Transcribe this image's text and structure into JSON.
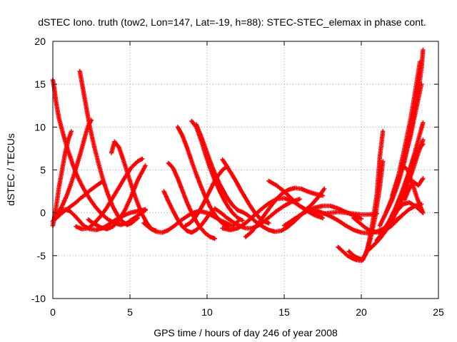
{
  "chart_data": {
    "type": "scatter",
    "title": "dSTEC Iono. truth (tow2, Lon=147, Lat=-19, h=88): STEC-STEC_elemax in phase cont.",
    "xlabel": "GPS time / hours of day 246 of year 2008",
    "ylabel": "dSTEC  / TECUs",
    "xlim": [
      0,
      25
    ],
    "ylim": [
      -10,
      20
    ],
    "xticks": [
      "0",
      "5",
      "10",
      "15",
      "20",
      "25"
    ],
    "yticks": [
      "-10",
      "-5",
      "0",
      "5",
      "10",
      "15",
      "20"
    ],
    "xtick_values": [
      0,
      5,
      10,
      15,
      20,
      25
    ],
    "ytick_values": [
      -10,
      -5,
      0,
      5,
      10,
      15,
      20
    ],
    "grid": true,
    "legend": "none",
    "marker": "plus",
    "color": "#ff0000",
    "series": [
      {
        "x": [
          0.0,
          0.05,
          0.1,
          0.2,
          0.4,
          0.7,
          1.0,
          1.3,
          1.6,
          2.0,
          2.4,
          2.8,
          3.2,
          3.6,
          4.0,
          4.4,
          4.8,
          5.2,
          5.6,
          6.0
        ],
        "y": [
          15.5,
          15.0,
          14.5,
          13.0,
          11.0,
          9.0,
          7.2,
          5.6,
          4.2,
          2.8,
          1.6,
          0.6,
          -0.2,
          -0.8,
          -1.2,
          -1.4,
          -1.2,
          -0.7,
          -0.2,
          0.3
        ]
      },
      {
        "x": [
          0.0,
          0.3,
          0.6,
          0.9,
          1.2,
          1.5,
          1.8,
          2.1,
          2.4,
          2.7,
          3.0,
          3.2
        ],
        "y": [
          -1.0,
          -0.5,
          0.0,
          0.4,
          0.8,
          1.2,
          1.7,
          2.1,
          2.6,
          3.0,
          3.4,
          3.6
        ]
      },
      {
        "x": [
          0.0,
          0.2,
          0.4,
          0.6,
          0.8,
          1.0,
          1.2
        ],
        "y": [
          -1.5,
          0.5,
          3.0,
          5.0,
          7.0,
          8.5,
          9.5
        ]
      },
      {
        "x": [
          1.75,
          1.85,
          2.0,
          2.2,
          2.4,
          2.7,
          3.0,
          3.3,
          3.6,
          3.9,
          4.2,
          4.5,
          4.8,
          5.1,
          5.5
        ],
        "y": [
          16.5,
          15.5,
          14.0,
          12.0,
          10.0,
          7.6,
          5.5,
          3.6,
          2.0,
          0.7,
          -0.3,
          -1.0,
          -1.4,
          -1.2,
          -0.6
        ]
      },
      {
        "x": [
          0.3,
          0.6,
          0.9,
          1.2,
          1.5,
          1.8,
          2.1,
          2.3,
          2.5
        ],
        "y": [
          -0.2,
          0.8,
          2.0,
          3.5,
          5.2,
          7.0,
          9.0,
          10.2,
          10.8
        ]
      },
      {
        "x": [
          0.5,
          0.8,
          1.1,
          1.4,
          1.7,
          2.0,
          2.4,
          2.8,
          3.2,
          3.6,
          4.0,
          4.5,
          5.0,
          5.5,
          6.0
        ],
        "y": [
          0.3,
          0.4,
          0.2,
          -0.3,
          -0.9,
          -1.5,
          -1.9,
          -2.0,
          -1.8,
          -1.4,
          -0.9,
          -0.4,
          0.0,
          0.2,
          0.4
        ]
      },
      {
        "x": [
          1.5,
          1.9,
          2.3,
          2.7,
          3.1,
          3.5,
          3.9,
          4.3,
          4.7,
          5.1,
          5.5,
          5.8
        ],
        "y": [
          -1.6,
          -1.9,
          -1.8,
          -1.2,
          -0.4,
          0.6,
          1.8,
          3.0,
          4.2,
          5.3,
          6.0,
          6.3
        ]
      },
      {
        "x": [
          2.3,
          2.7,
          3.1,
          3.5,
          3.9,
          4.3,
          4.7,
          5.1,
          5.5,
          6.0
        ],
        "y": [
          -0.8,
          -1.3,
          -1.7,
          -1.9,
          -1.6,
          -0.8,
          0.4,
          2.0,
          3.8,
          5.5
        ]
      },
      {
        "x": [
          3.8,
          4.0,
          4.3,
          4.6,
          4.9,
          5.2,
          5.5,
          5.8,
          6.1,
          6.4,
          6.7
        ],
        "y": [
          7.0,
          8.3,
          7.6,
          6.0,
          4.3,
          2.6,
          1.1,
          -0.2,
          -1.2,
          -1.9,
          -2.1
        ]
      },
      {
        "x": [
          5.9,
          6.3,
          6.7,
          7.1,
          7.5,
          7.9,
          8.3,
          8.7,
          9.1,
          9.5,
          10.0,
          10.5,
          11.0,
          11.5
        ],
        "y": [
          -1.2,
          -1.8,
          -2.2,
          -2.3,
          -2.0,
          -1.5,
          -0.9,
          -0.4,
          0.0,
          0.2,
          0.0,
          -0.5,
          -1.0,
          -1.4
        ]
      },
      {
        "x": [
          7.2,
          7.5,
          7.8,
          8.1,
          8.4,
          8.7,
          9.0,
          9.3,
          9.6,
          9.9,
          10.2
        ],
        "y": [
          2.5,
          1.3,
          0.2,
          -0.8,
          -1.6,
          -2.1,
          -2.3,
          -2.0,
          -1.5,
          -0.8,
          0.0
        ]
      },
      {
        "x": [
          7.5,
          7.8,
          8.1,
          8.4,
          8.7,
          9.0,
          9.3,
          9.6,
          9.9,
          10.2,
          10.5
        ],
        "y": [
          5.8,
          5.2,
          4.0,
          2.6,
          1.2,
          0.0,
          -1.0,
          -1.8,
          -2.4,
          -2.8,
          -3.0
        ]
      },
      {
        "x": [
          8.1,
          8.4,
          8.7,
          9.0,
          9.3,
          9.6,
          9.9,
          10.2,
          10.5,
          10.8,
          11.1,
          11.4,
          11.7,
          12.0
        ],
        "y": [
          10.0,
          9.0,
          7.6,
          6.0,
          4.5,
          3.1,
          1.8,
          0.7,
          -0.2,
          -0.9,
          -1.4,
          -1.6,
          -1.5,
          -1.0
        ]
      },
      {
        "x": [
          9.0,
          9.3,
          9.6,
          9.9,
          10.2,
          10.5,
          10.8,
          11.1,
          11.4,
          11.7,
          12.0,
          12.3
        ],
        "y": [
          10.7,
          10.0,
          8.5,
          6.8,
          5.2,
          3.8,
          2.6,
          1.5,
          0.6,
          -0.1,
          -0.6,
          -0.9
        ]
      },
      {
        "x": [
          9.3,
          9.6,
          9.9,
          10.2,
          10.5,
          10.8,
          11.1,
          11.4,
          11.7,
          12.0
        ],
        "y": [
          10.3,
          9.0,
          7.5,
          6.0,
          4.6,
          3.4,
          2.4,
          1.5,
          0.8,
          0.3
        ]
      },
      {
        "x": [
          8.6,
          8.9,
          9.2,
          9.5,
          9.8,
          10.1,
          10.4,
          10.7,
          11.0,
          11.3
        ],
        "y": [
          -1.5,
          -1.2,
          -0.6,
          0.2,
          1.2,
          2.3,
          3.4,
          4.3,
          5.0,
          5.4
        ]
      },
      {
        "x": [
          11.0,
          11.3,
          11.6,
          11.9,
          12.2,
          12.5,
          12.8,
          13.1,
          13.4,
          13.7,
          14.0
        ],
        "y": [
          6.2,
          5.4,
          4.5,
          3.6,
          2.6,
          1.7,
          0.8,
          0.0,
          -0.6,
          -1.0,
          -1.2
        ]
      },
      {
        "x": [
          10.5,
          10.9,
          11.3,
          11.7,
          12.1,
          12.5,
          12.9,
          13.3,
          13.7,
          14.1,
          14.5,
          15.0,
          15.5,
          16.0
        ],
        "y": [
          0.5,
          0.0,
          -0.6,
          -1.1,
          -1.5,
          -1.8,
          -1.8,
          -1.5,
          -1.0,
          -0.4,
          0.2,
          0.8,
          1.3,
          1.6
        ]
      },
      {
        "x": [
          11.0,
          11.5,
          12.0,
          12.5,
          13.0,
          13.5,
          14.0,
          14.5,
          15.0,
          15.5,
          16.0,
          16.5,
          17.0,
          17.5
        ],
        "y": [
          -1.8,
          -2.0,
          -1.8,
          -1.2,
          -0.4,
          0.4,
          1.1,
          1.6,
          1.7,
          1.4,
          0.8,
          0.2,
          -0.3,
          -0.6
        ]
      },
      {
        "x": [
          12.5,
          12.9,
          13.3,
          13.7,
          14.1,
          14.5,
          14.9,
          15.3,
          15.7,
          16.1,
          16.5,
          17.0,
          17.5
        ],
        "y": [
          -2.8,
          -2.2,
          -1.3,
          -0.3,
          0.7,
          1.6,
          2.3,
          2.7,
          2.9,
          2.8,
          2.5,
          2.2,
          2.0
        ]
      },
      {
        "x": [
          12.0,
          12.4,
          12.8,
          13.2,
          13.6,
          14.0,
          14.4,
          14.8,
          15.2,
          15.6,
          16.0,
          16.4,
          16.8,
          17.2,
          17.6
        ],
        "y": [
          0.3,
          0.0,
          -0.5,
          -1.1,
          -1.6,
          -2.0,
          -2.2,
          -2.1,
          -1.7,
          -1.1,
          -0.4,
          0.3,
          1.0,
          1.8,
          2.8
        ]
      },
      {
        "x": [
          14.0,
          14.5,
          15.0,
          15.5,
          16.0,
          16.5,
          17.0,
          17.5,
          18.0,
          18.5,
          19.0,
          19.5,
          20.0,
          20.5,
          21.0
        ],
        "y": [
          3.7,
          3.2,
          2.5,
          1.6,
          0.8,
          0.3,
          0.0,
          -0.1,
          0.0,
          0.1,
          0.0,
          -0.1,
          -0.2,
          -0.2,
          -0.1
        ]
      },
      {
        "x": [
          15.0,
          15.5,
          16.0,
          16.5,
          17.0,
          17.5,
          18.0,
          18.5,
          19.0,
          19.5,
          20.0
        ],
        "y": [
          -1.5,
          -0.9,
          -0.3,
          0.2,
          0.6,
          0.8,
          0.8,
          0.5,
          0.1,
          -0.3,
          -0.7
        ]
      },
      {
        "x": [
          16.5,
          17.0,
          17.5,
          18.0,
          18.5,
          19.0,
          19.5,
          20.0,
          20.5,
          21.0,
          21.5,
          22.0,
          22.5
        ],
        "y": [
          0.5,
          0.3,
          0.0,
          -0.4,
          -0.9,
          -1.5,
          -2.0,
          -2.3,
          -2.4,
          -2.2,
          -1.8,
          -1.2,
          -0.5
        ]
      },
      {
        "x": [
          18.5,
          18.8,
          19.1,
          19.4,
          19.7,
          20.0,
          20.3,
          20.6,
          20.9,
          21.2,
          21.4
        ],
        "y": [
          -4.0,
          -4.5,
          -5.0,
          -5.3,
          -5.5,
          -5.6,
          -4.8,
          -3.0,
          -0.5,
          3.0,
          6.0
        ]
      },
      {
        "x": [
          19.2,
          19.5,
          19.8,
          20.1,
          20.4,
          20.7,
          21.0,
          21.2,
          21.4
        ],
        "y": [
          -4.5,
          -5.0,
          -5.3,
          -5.5,
          -4.2,
          -1.5,
          2.0,
          6.5,
          9.5
        ]
      },
      {
        "x": [
          19.5,
          19.9,
          20.3,
          20.7,
          21.1,
          21.5,
          21.9,
          22.3,
          22.7,
          23.1,
          23.5,
          23.9
        ],
        "y": [
          -0.6,
          -1.2,
          -1.8,
          -2.2,
          -2.3,
          -2.1,
          -1.6,
          -0.9,
          -0.2,
          0.4,
          0.8,
          1.0
        ]
      },
      {
        "x": [
          20.5,
          20.9,
          21.3,
          21.7,
          22.1,
          22.5,
          22.9,
          23.3,
          23.7,
          24.0
        ],
        "y": [
          -4.3,
          -3.6,
          -2.8,
          -1.8,
          -0.5,
          1.0,
          2.8,
          4.8,
          7.0,
          8.5
        ]
      },
      {
        "x": [
          21.0,
          21.4,
          21.8,
          22.2,
          22.6,
          23.0,
          23.4,
          23.8,
          24.0
        ],
        "y": [
          -3.2,
          -2.3,
          -1.0,
          0.5,
          2.3,
          4.3,
          6.6,
          9.2,
          10.5
        ]
      },
      {
        "x": [
          21.2,
          21.6,
          22.0,
          22.4,
          22.8,
          23.2,
          23.6,
          23.9
        ],
        "y": [
          -1.5,
          0.0,
          1.8,
          3.8,
          6.2,
          9.0,
          12.5,
          15.0
        ]
      },
      {
        "x": [
          21.6,
          22.0,
          22.4,
          22.8,
          23.2,
          23.6,
          23.9,
          24.0
        ],
        "y": [
          0.0,
          1.5,
          3.5,
          6.0,
          9.2,
          13.0,
          16.8,
          19.0
        ]
      },
      {
        "x": [
          22.0,
          22.4,
          22.8,
          23.2,
          23.5,
          23.8
        ],
        "y": [
          2.0,
          4.3,
          7.5,
          11.0,
          14.2,
          17.6
        ]
      },
      {
        "x": [
          22.3,
          22.7,
          23.0,
          23.3,
          23.6,
          24.0
        ],
        "y": [
          3.5,
          5.5,
          5.0,
          3.5,
          1.8,
          0.0
        ]
      },
      {
        "x": [
          22.6,
          23.0,
          23.3,
          23.6,
          24.0
        ],
        "y": [
          2.0,
          4.0,
          5.8,
          7.3,
          8.0
        ]
      },
      {
        "x": [
          21.5,
          21.9,
          22.3,
          22.7,
          23.1,
          23.5,
          24.0
        ],
        "y": [
          -1.8,
          -0.8,
          0.2,
          1.0,
          1.2,
          0.8,
          0.0
        ]
      },
      {
        "x": [
          22.8,
          23.1,
          23.4,
          23.7,
          24.0
        ],
        "y": [
          1.5,
          2.8,
          3.6,
          3.2,
          4.0
        ]
      }
    ]
  }
}
